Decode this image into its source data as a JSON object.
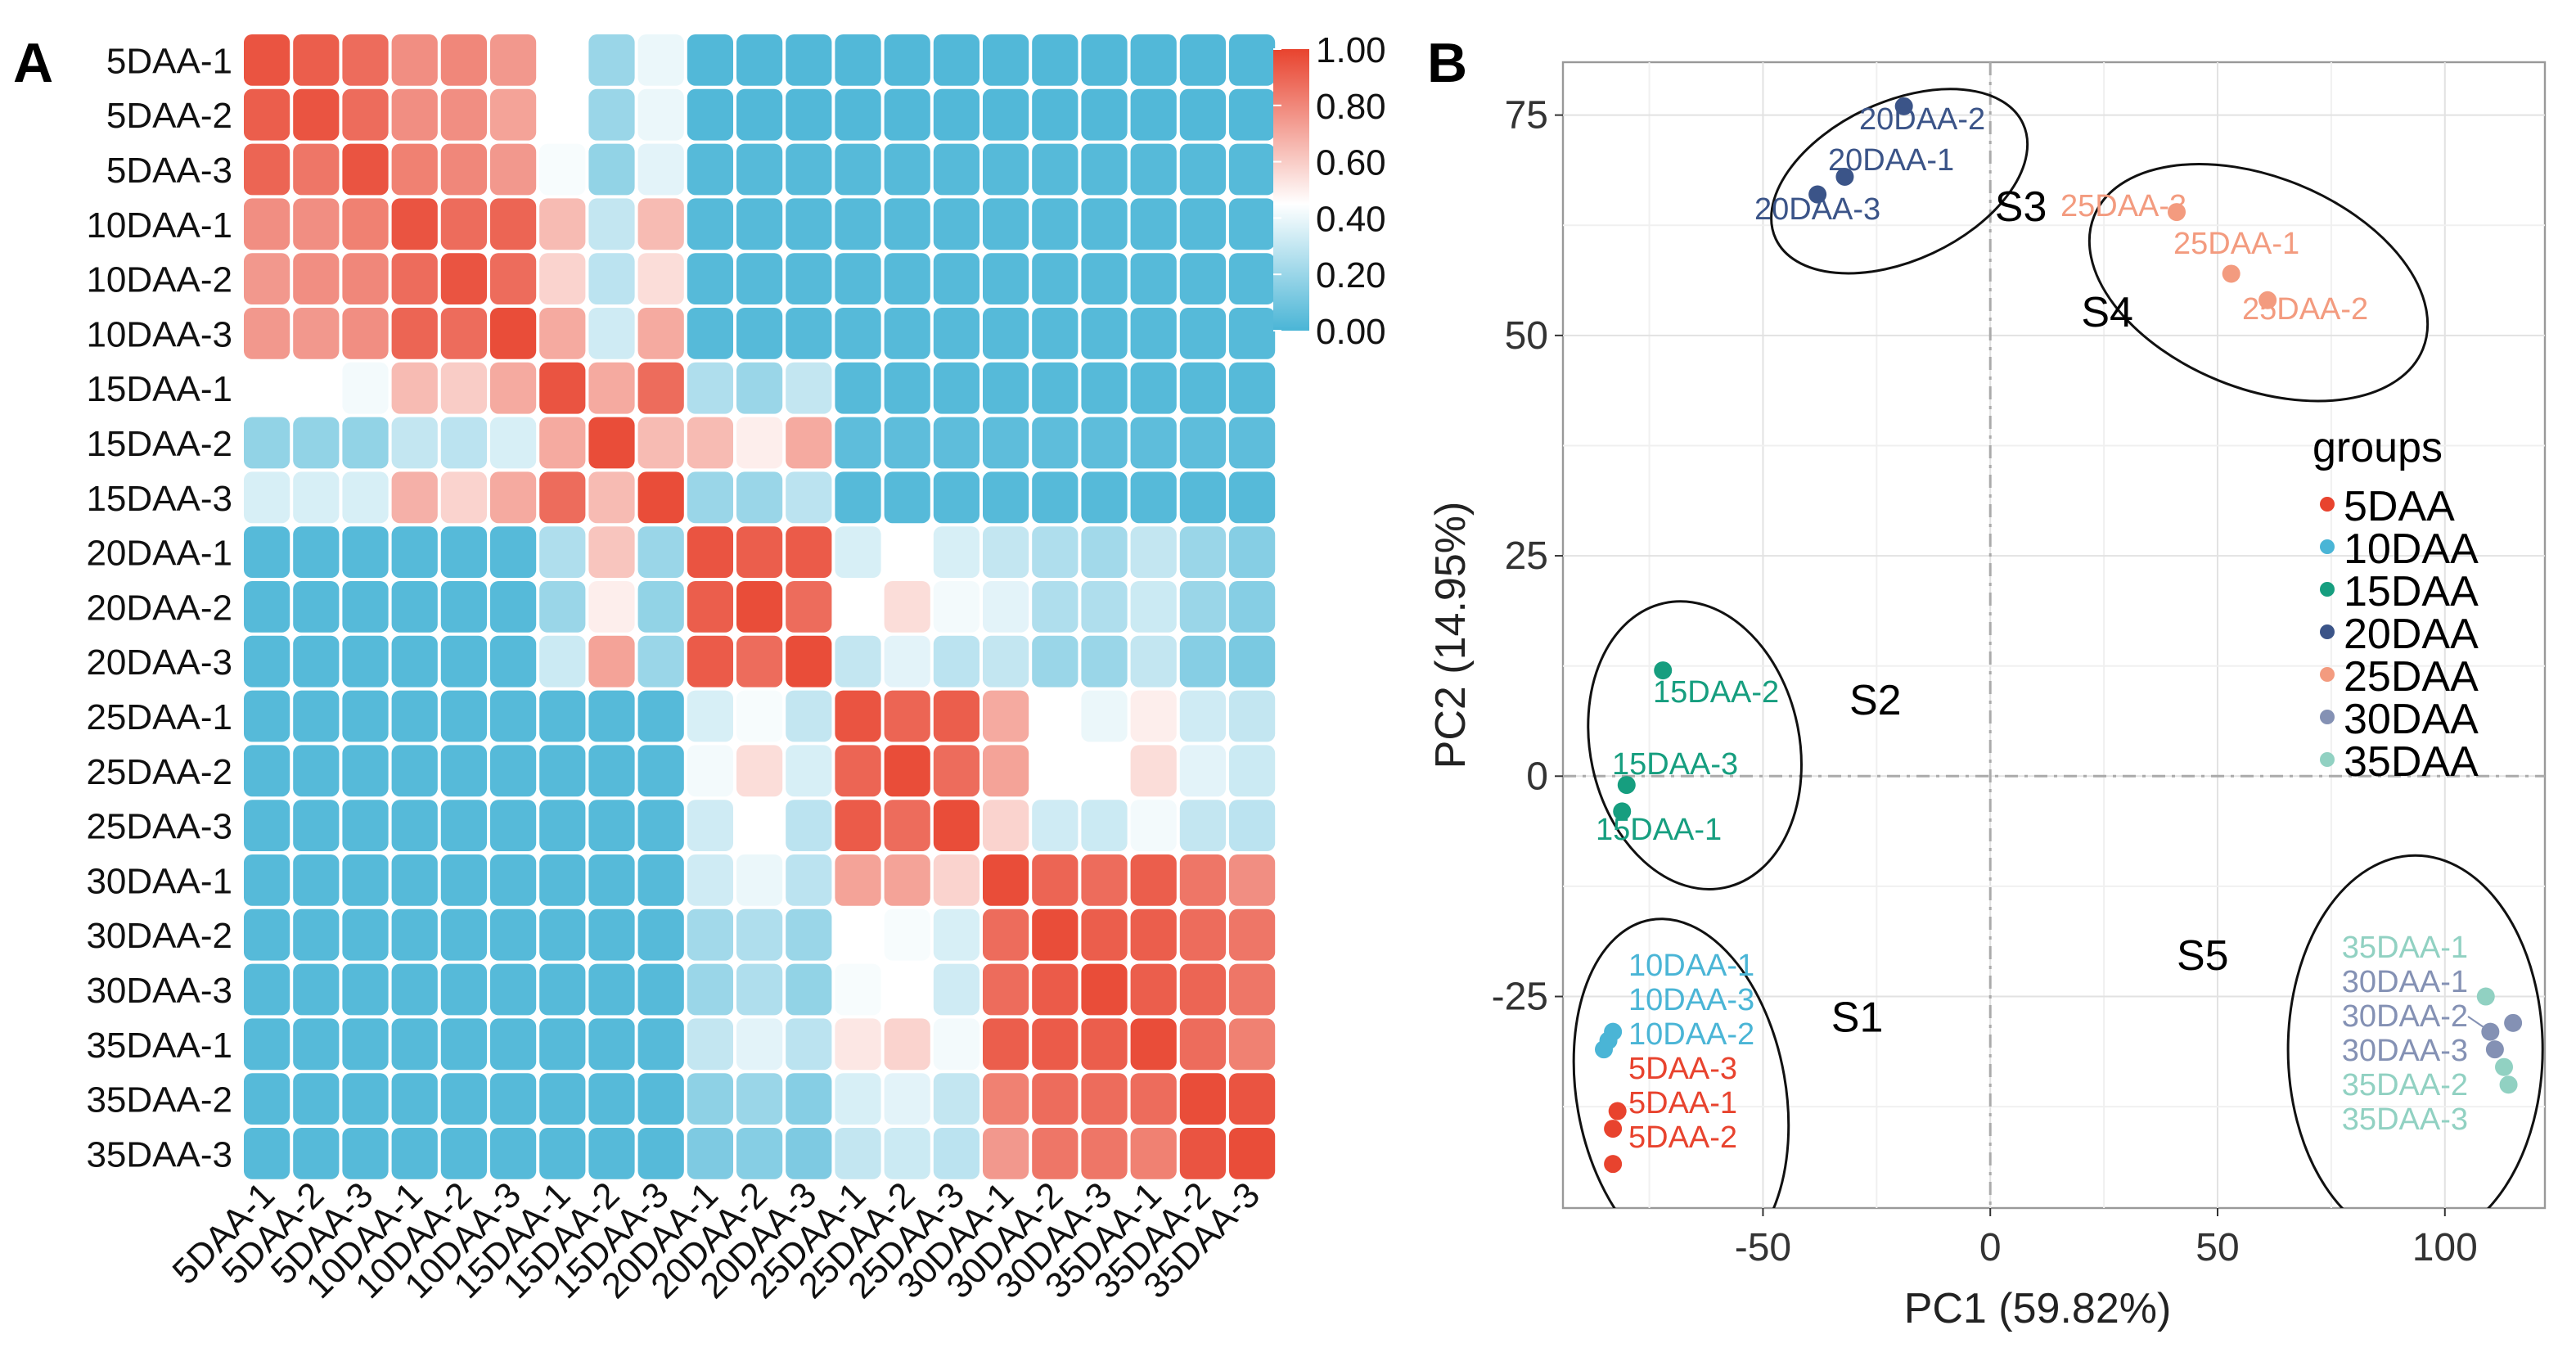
{
  "panels": {
    "a": "A",
    "b": "B"
  },
  "chart_data": [
    {
      "type": "heatmap",
      "title": "",
      "labels": [
        "5DAA-1",
        "5DAA-2",
        "5DAA-3",
        "10DAA-1",
        "10DAA-2",
        "10DAA-3",
        "15DAA-1",
        "15DAA-2",
        "15DAA-3",
        "20DAA-1",
        "20DAA-2",
        "20DAA-3",
        "25DAA-1",
        "25DAA-2",
        "25DAA-3",
        "30DAA-1",
        "30DAA-2",
        "30DAA-3",
        "35DAA-1",
        "35DAA-2",
        "35DAA-3"
      ],
      "values": [
        [
          0.95,
          0.92,
          0.88,
          0.78,
          0.8,
          0.75,
          0.45,
          0.2,
          0.4,
          0.02,
          0.02,
          0.02,
          0.02,
          0.02,
          0.02,
          0.02,
          0.02,
          0.02,
          0.02,
          0.02,
          0.02
        ],
        [
          0.92,
          0.95,
          0.88,
          0.78,
          0.78,
          0.72,
          0.45,
          0.2,
          0.4,
          0.02,
          0.02,
          0.02,
          0.02,
          0.02,
          0.02,
          0.02,
          0.02,
          0.02,
          0.02,
          0.02,
          0.02
        ],
        [
          0.9,
          0.85,
          0.95,
          0.82,
          0.8,
          0.75,
          0.43,
          0.18,
          0.38,
          0.03,
          0.03,
          0.03,
          0.03,
          0.03,
          0.03,
          0.03,
          0.03,
          0.03,
          0.03,
          0.03,
          0.03
        ],
        [
          0.78,
          0.78,
          0.82,
          0.95,
          0.88,
          0.9,
          0.65,
          0.3,
          0.65,
          0.03,
          0.03,
          0.03,
          0.03,
          0.03,
          0.03,
          0.03,
          0.03,
          0.03,
          0.03,
          0.03,
          0.03
        ],
        [
          0.75,
          0.78,
          0.8,
          0.88,
          0.95,
          0.88,
          0.58,
          0.28,
          0.55,
          0.03,
          0.03,
          0.03,
          0.03,
          0.03,
          0.03,
          0.03,
          0.03,
          0.03,
          0.03,
          0.03,
          0.03
        ],
        [
          0.75,
          0.75,
          0.78,
          0.9,
          0.88,
          0.97,
          0.7,
          0.33,
          0.7,
          0.03,
          0.03,
          0.03,
          0.03,
          0.03,
          0.03,
          0.03,
          0.03,
          0.03,
          0.03,
          0.03,
          0.03
        ],
        [
          0.45,
          0.45,
          0.42,
          0.65,
          0.6,
          0.7,
          0.95,
          0.7,
          0.88,
          0.25,
          0.2,
          0.3,
          0.03,
          0.03,
          0.03,
          0.03,
          0.03,
          0.03,
          0.03,
          0.03,
          0.03
        ],
        [
          0.18,
          0.18,
          0.18,
          0.3,
          0.28,
          0.35,
          0.7,
          0.97,
          0.65,
          0.65,
          0.5,
          0.7,
          0.05,
          0.05,
          0.05,
          0.05,
          0.05,
          0.05,
          0.05,
          0.05,
          0.05
        ],
        [
          0.35,
          0.35,
          0.35,
          0.68,
          0.58,
          0.7,
          0.88,
          0.65,
          0.97,
          0.2,
          0.2,
          0.28,
          0.03,
          0.03,
          0.03,
          0.03,
          0.03,
          0.03,
          0.03,
          0.03,
          0.03
        ],
        [
          0.03,
          0.03,
          0.03,
          0.03,
          0.03,
          0.03,
          0.25,
          0.62,
          0.2,
          0.95,
          0.92,
          0.93,
          0.35,
          0.45,
          0.35,
          0.3,
          0.25,
          0.22,
          0.3,
          0.2,
          0.15
        ],
        [
          0.03,
          0.03,
          0.03,
          0.03,
          0.03,
          0.03,
          0.2,
          0.5,
          0.18,
          0.92,
          0.97,
          0.88,
          0.45,
          0.55,
          0.42,
          0.38,
          0.25,
          0.25,
          0.32,
          0.2,
          0.15
        ],
        [
          0.03,
          0.03,
          0.03,
          0.03,
          0.03,
          0.03,
          0.32,
          0.72,
          0.2,
          0.93,
          0.88,
          0.97,
          0.3,
          0.38,
          0.28,
          0.3,
          0.2,
          0.2,
          0.3,
          0.15,
          0.12
        ],
        [
          0.03,
          0.03,
          0.03,
          0.03,
          0.03,
          0.03,
          0.03,
          0.03,
          0.03,
          0.35,
          0.43,
          0.3,
          0.95,
          0.9,
          0.92,
          0.7,
          0.45,
          0.4,
          0.5,
          0.33,
          0.3
        ],
        [
          0.03,
          0.03,
          0.03,
          0.03,
          0.03,
          0.03,
          0.03,
          0.03,
          0.03,
          0.42,
          0.55,
          0.35,
          0.9,
          0.97,
          0.88,
          0.72,
          0.45,
          0.45,
          0.55,
          0.38,
          0.32
        ],
        [
          0.03,
          0.03,
          0.03,
          0.03,
          0.03,
          0.03,
          0.03,
          0.03,
          0.03,
          0.33,
          0.45,
          0.28,
          0.93,
          0.88,
          0.97,
          0.58,
          0.33,
          0.32,
          0.42,
          0.3,
          0.28
        ],
        [
          0.03,
          0.03,
          0.03,
          0.03,
          0.03,
          0.03,
          0.03,
          0.03,
          0.03,
          0.33,
          0.4,
          0.28,
          0.72,
          0.72,
          0.58,
          0.97,
          0.9,
          0.88,
          0.92,
          0.85,
          0.78
        ],
        [
          0.03,
          0.03,
          0.03,
          0.03,
          0.03,
          0.03,
          0.03,
          0.03,
          0.03,
          0.22,
          0.25,
          0.2,
          0.45,
          0.43,
          0.35,
          0.88,
          0.97,
          0.92,
          0.92,
          0.88,
          0.85
        ],
        [
          0.03,
          0.03,
          0.03,
          0.03,
          0.03,
          0.03,
          0.03,
          0.03,
          0.03,
          0.2,
          0.25,
          0.18,
          0.43,
          0.45,
          0.33,
          0.88,
          0.93,
          0.97,
          0.92,
          0.9,
          0.85
        ],
        [
          0.03,
          0.03,
          0.03,
          0.03,
          0.03,
          0.03,
          0.03,
          0.03,
          0.03,
          0.3,
          0.38,
          0.28,
          0.52,
          0.58,
          0.42,
          0.92,
          0.93,
          0.92,
          0.97,
          0.88,
          0.82
        ],
        [
          0.03,
          0.03,
          0.03,
          0.03,
          0.03,
          0.03,
          0.03,
          0.03,
          0.03,
          0.17,
          0.2,
          0.15,
          0.35,
          0.38,
          0.3,
          0.82,
          0.88,
          0.88,
          0.88,
          0.97,
          0.95
        ],
        [
          0.03,
          0.03,
          0.03,
          0.03,
          0.03,
          0.03,
          0.03,
          0.03,
          0.03,
          0.13,
          0.15,
          0.13,
          0.3,
          0.32,
          0.28,
          0.75,
          0.85,
          0.85,
          0.82,
          0.95,
          0.97
        ]
      ],
      "colorbar": {
        "ticks": [
          "1.00",
          "0.80",
          "0.60",
          "0.40",
          "0.20",
          "0.00"
        ],
        "range": [
          0,
          1
        ],
        "low_color": "#4ab5d6",
        "mid_color": "#ffffff",
        "high_color": "#e8432e",
        "mid_value": 0.45
      }
    },
    {
      "type": "scatter",
      "xlabel": "PC1 (59.82%)",
      "ylabel": "PC2 (14.95%)",
      "xlim": [
        -94,
        122
      ],
      "ylim": [
        -49,
        81
      ],
      "xticks": [
        "-50",
        "0",
        "50",
        "100"
      ],
      "xtick_values": [
        -50,
        0,
        50,
        100
      ],
      "yticks": [
        "-25",
        "0",
        "25",
        "50",
        "75"
      ],
      "ytick_values": [
        -25,
        0,
        25,
        50,
        75
      ],
      "grid": true,
      "legend": {
        "title": "groups",
        "placement": "right",
        "items": [
          {
            "label": "5DAA",
            "color": "#e8432e"
          },
          {
            "label": "10DAA",
            "color": "#4ab5d6"
          },
          {
            "label": "15DAA",
            "color": "#169e7f"
          },
          {
            "label": "20DAA",
            "color": "#3b5488"
          },
          {
            "label": "25DAA",
            "color": "#f39b7f"
          },
          {
            "label": "30DAA",
            "color": "#8491b4"
          },
          {
            "label": "35DAA",
            "color": "#91d1c2"
          }
        ]
      },
      "points": [
        {
          "label": "5DAA-1",
          "group": 0,
          "x": -83,
          "y": -40
        },
        {
          "label": "5DAA-2",
          "group": 0,
          "x": -83,
          "y": -44
        },
        {
          "label": "5DAA-3",
          "group": 0,
          "x": -82,
          "y": -38
        },
        {
          "label": "10DAA-1",
          "group": 1,
          "x": -83,
          "y": -29
        },
        {
          "label": "10DAA-2",
          "group": 1,
          "x": -85,
          "y": -31
        },
        {
          "label": "10DAA-3",
          "group": 1,
          "x": -84,
          "y": -30
        },
        {
          "label": "15DAA-1",
          "group": 2,
          "x": -81,
          "y": -4
        },
        {
          "label": "15DAA-2",
          "group": 2,
          "x": -72,
          "y": 12
        },
        {
          "label": "15DAA-3",
          "group": 2,
          "x": -80,
          "y": -1
        },
        {
          "label": "20DAA-1",
          "group": 3,
          "x": -32,
          "y": 68
        },
        {
          "label": "20DAA-2",
          "group": 3,
          "x": -19,
          "y": 76
        },
        {
          "label": "20DAA-3",
          "group": 3,
          "x": -38,
          "y": 66
        },
        {
          "label": "25DAA-1",
          "group": 4,
          "x": 53,
          "y": 57
        },
        {
          "label": "25DAA-2",
          "group": 4,
          "x": 61,
          "y": 54
        },
        {
          "label": "25DAA-3",
          "group": 4,
          "x": 41,
          "y": 64
        },
        {
          "label": "30DAA-1",
          "group": 5,
          "x": 115,
          "y": -28
        },
        {
          "label": "30DAA-2",
          "group": 5,
          "x": 110,
          "y": -29
        },
        {
          "label": "30DAA-3",
          "group": 5,
          "x": 111,
          "y": -31
        },
        {
          "label": "35DAA-1",
          "group": 6,
          "x": 109,
          "y": -25
        },
        {
          "label": "35DAA-2",
          "group": 6,
          "x": 113,
          "y": -33
        },
        {
          "label": "35DAA-3",
          "group": 6,
          "x": 114,
          "y": -35
        }
      ],
      "clusters": [
        {
          "label": "S1",
          "cx": -68,
          "cy": -36,
          "rx": 23,
          "ry": 20,
          "angle": -10,
          "label_x": -35,
          "label_y": -29
        },
        {
          "label": "S2",
          "cx": -65,
          "cy": 3.5,
          "rx": 23,
          "ry": 16.5,
          "angle": -12,
          "label_x": -31,
          "label_y": 7
        },
        {
          "label": "S3",
          "cx": -20,
          "cy": 67.5,
          "rx": 30,
          "ry": 9,
          "angle": -25,
          "label_x": 1,
          "label_y": 63
        },
        {
          "label": "S4",
          "cx": 59,
          "cy": 56,
          "rx": 39,
          "ry": 12,
          "angle": 22,
          "label_x": 20,
          "label_y": 51
        },
        {
          "label": "S5",
          "cx": 93.5,
          "cy": -31,
          "rx": 28,
          "ry": 22,
          "angle": 0,
          "label_x": 41,
          "label_y": -22
        }
      ]
    }
  ]
}
